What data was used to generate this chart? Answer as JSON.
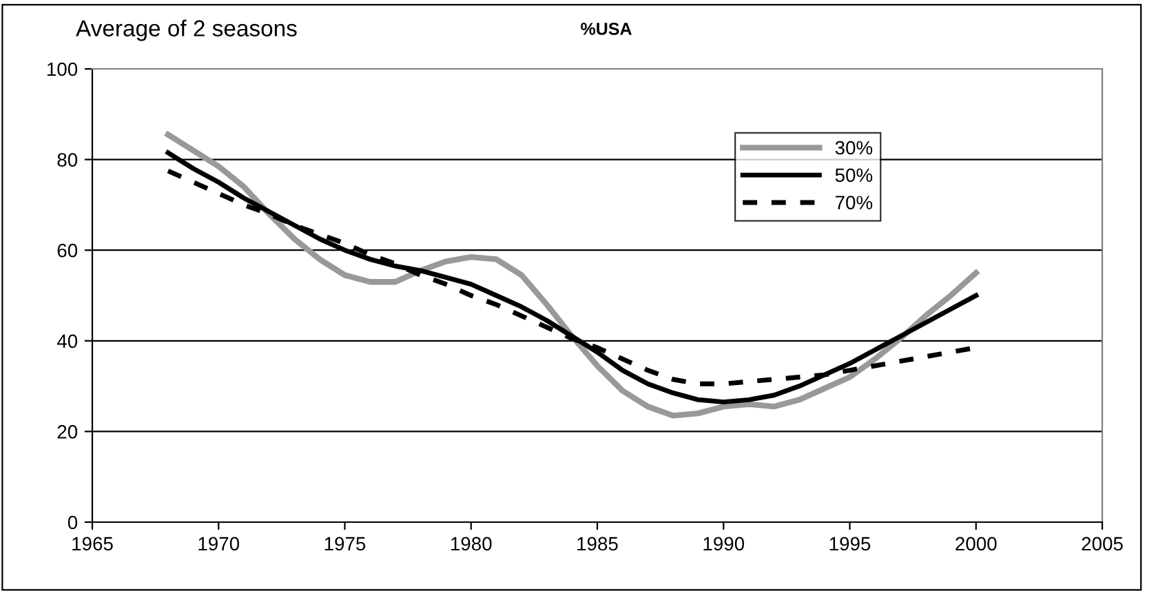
{
  "chart_data": {
    "type": "line",
    "title": "Average of 2 seasons",
    "subtitle": "%USA",
    "x": [
      1968,
      1969,
      1970,
      1971,
      1972,
      1973,
      1974,
      1975,
      1976,
      1977,
      1978,
      1979,
      1980,
      1981,
      1982,
      1983,
      1984,
      1985,
      1986,
      1987,
      1988,
      1989,
      1990,
      1991,
      1992,
      1993,
      1994,
      1995,
      1996,
      1997,
      1998,
      1999,
      2000
    ],
    "series": [
      {
        "name": "30%",
        "color": "#999999",
        "line_style": "solid",
        "values": [
          85.5,
          82,
          78.5,
          74,
          68,
          62.5,
          58,
          54.5,
          53,
          53,
          55.5,
          57.5,
          58.5,
          58,
          54.5,
          48,
          41,
          34.5,
          29,
          25.5,
          23.5,
          24,
          25.5,
          26,
          25.5,
          27,
          29.5,
          32,
          36,
          40.5,
          45.5,
          50,
          55
        ]
      },
      {
        "name": "50%",
        "color": "#000000",
        "line_style": "solid",
        "values": [
          81.5,
          78,
          75,
          71.5,
          68.5,
          65.5,
          62.5,
          60,
          58,
          56.5,
          55.5,
          54,
          52.5,
          50,
          47.5,
          44.5,
          41,
          37.5,
          33.5,
          30.5,
          28.5,
          27,
          26.5,
          27,
          28,
          30,
          32.5,
          35,
          38,
          41,
          44,
          47,
          50
        ]
      },
      {
        "name": "70%",
        "color": "#000000",
        "line_style": "dashed",
        "values": [
          77.5,
          75,
          72.5,
          70,
          68,
          65.5,
          63.5,
          61.5,
          59,
          57,
          54.5,
          52.5,
          50,
          48,
          45.5,
          43,
          40.5,
          38.5,
          36,
          33.5,
          31.5,
          30.5,
          30.5,
          31,
          31.5,
          32,
          32.5,
          33.5,
          34.5,
          35.5,
          36.5,
          37.5,
          38.5
        ]
      }
    ],
    "xlim": [
      1965,
      2005
    ],
    "xticks": [
      1965,
      1970,
      1975,
      1980,
      1985,
      1990,
      1995,
      2000,
      2005
    ],
    "ylim": [
      0,
      100
    ],
    "yticks": [
      0,
      20,
      40,
      60,
      80,
      100
    ],
    "grid": "y",
    "legend": "top right",
    "marker": "none"
  }
}
